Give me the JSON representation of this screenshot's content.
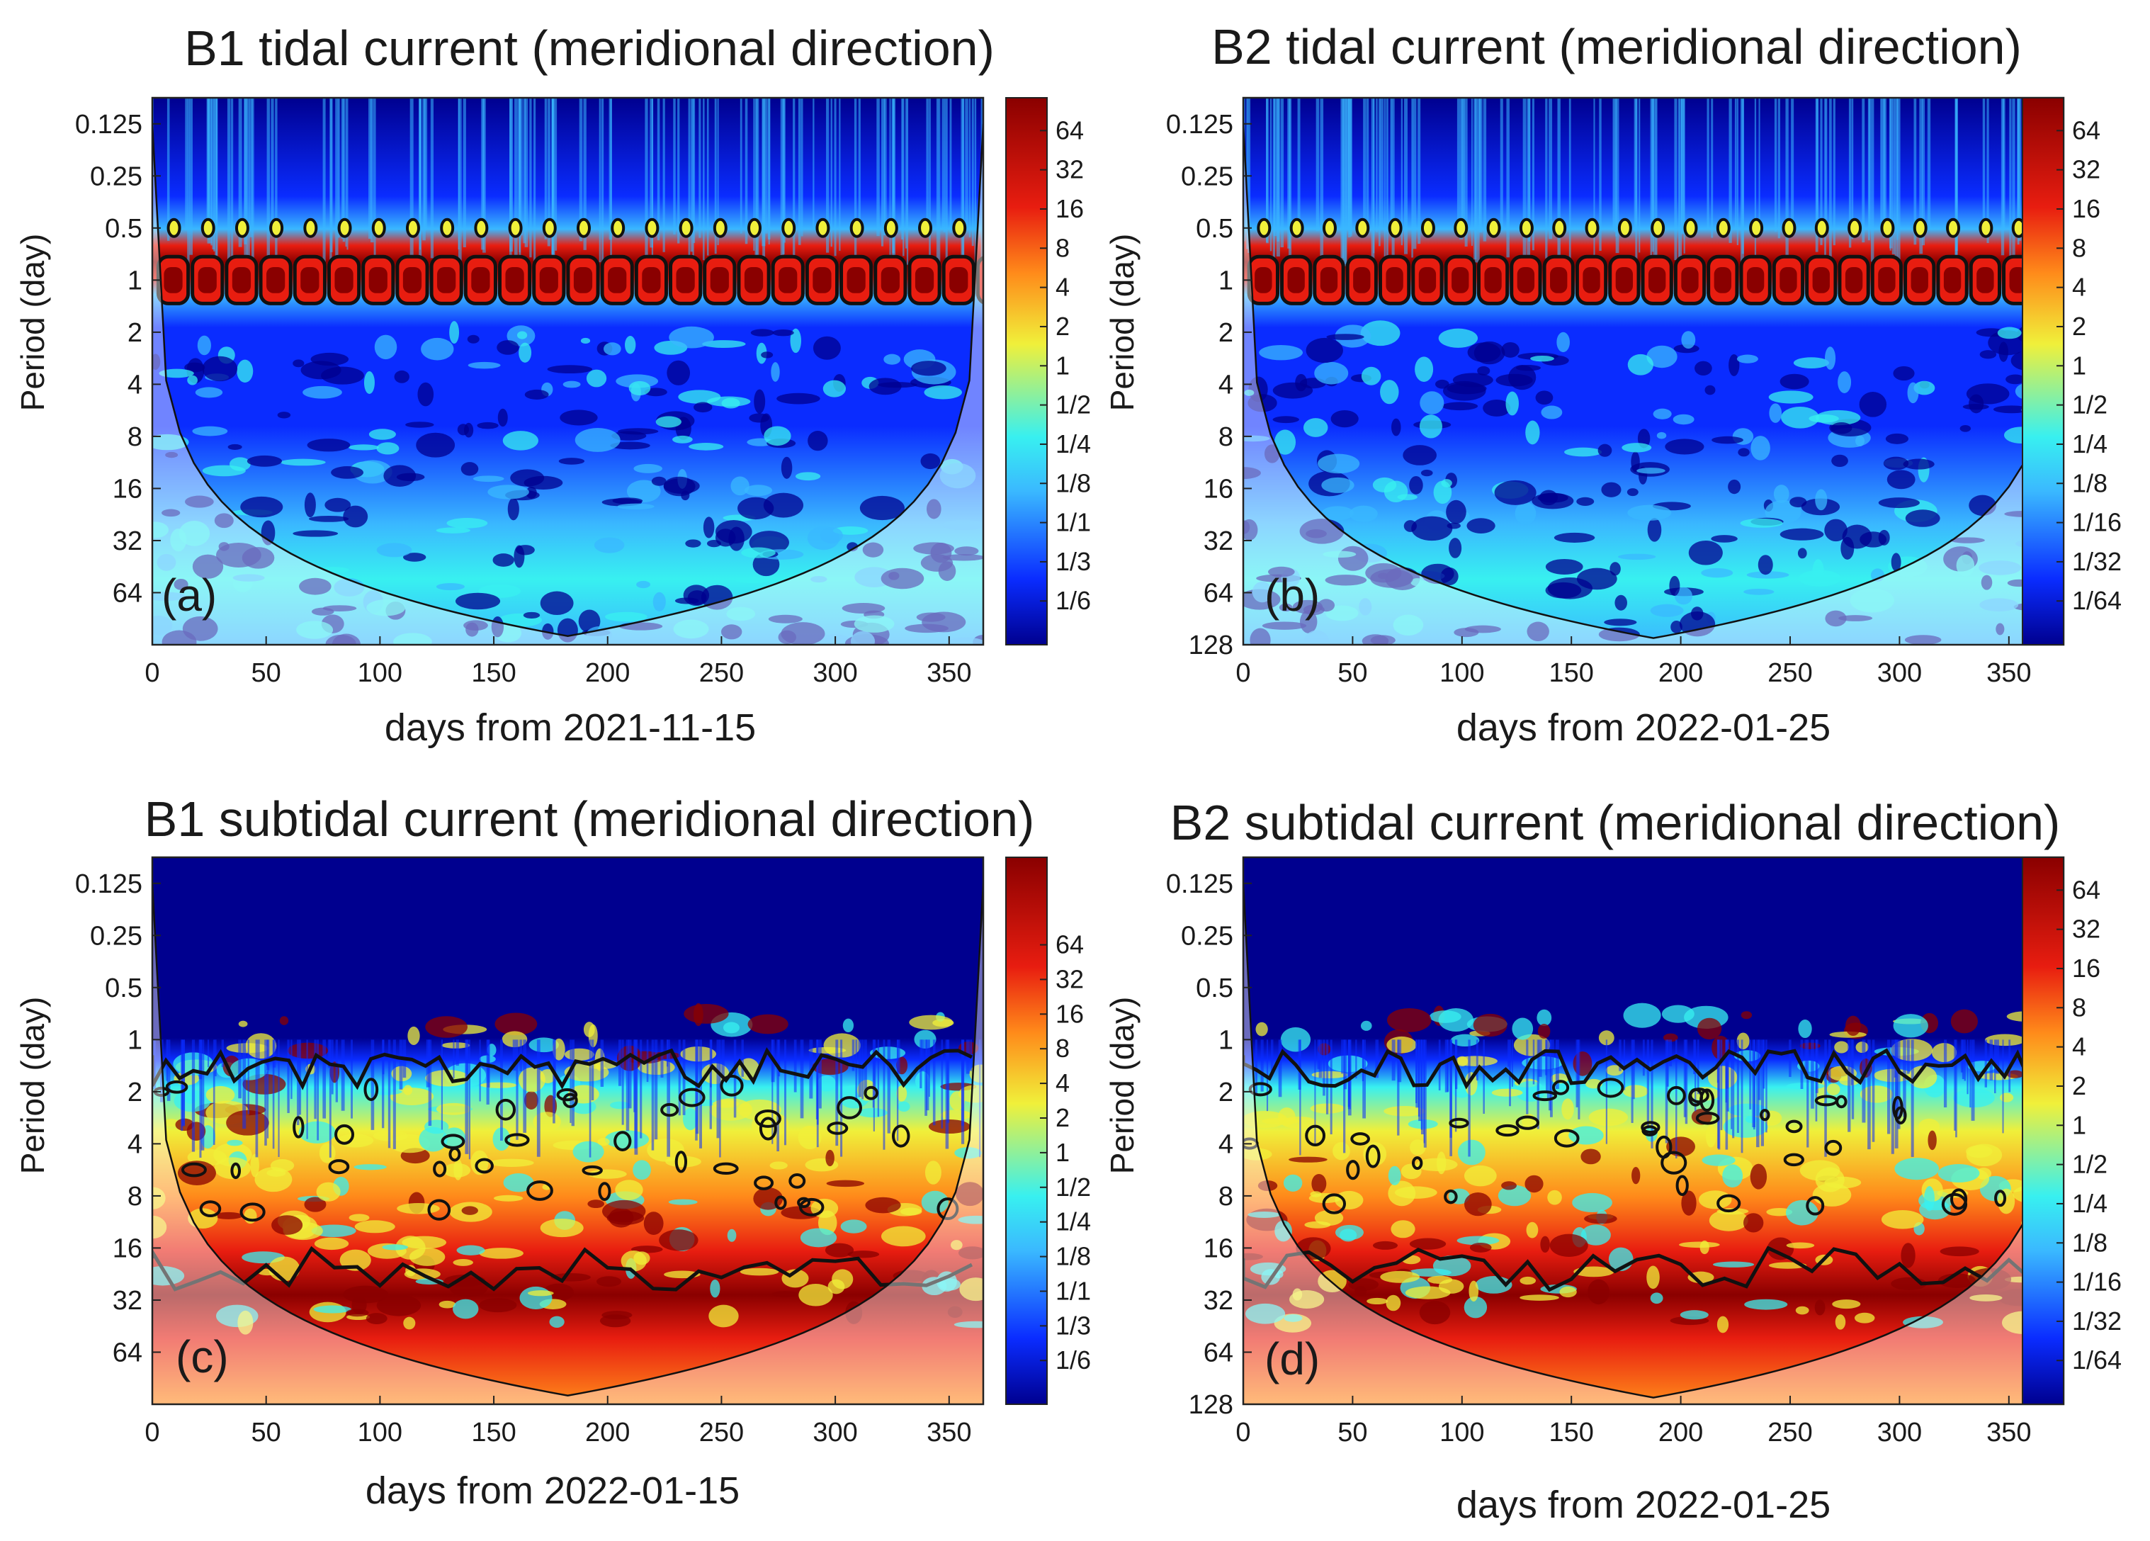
{
  "figure": {
    "ylabel": "Period (day)"
  },
  "colors": {
    "dark_blue": "#00008f",
    "blue": "#0a2cff",
    "light_blue": "#3ab8ff",
    "cyan": "#38f0f0",
    "yellow": "#f0f03a",
    "orange": "#ff8a1a",
    "red": "#e81d10",
    "dark_red": "#8a0000",
    "contour": "#111111"
  },
  "chart_data": [
    {
      "panel_label": "(a)",
      "type": "heatmap",
      "title": "B1 tidal current (meridional direction)",
      "xlabel": "days from 2021-11-15",
      "ylabel": "Period (day)",
      "xlim": [
        0,
        365
      ],
      "xticks": [
        0,
        50,
        100,
        150,
        200,
        250,
        300,
        350
      ],
      "yticks": [
        "0.125",
        "0.25",
        "0.5",
        "1",
        "2",
        "4",
        "8",
        "16",
        "32",
        "64"
      ],
      "ylim_log2": [
        -3.5,
        7
      ],
      "colorbar_ticks": [
        "64",
        "32",
        "16",
        "8",
        "4",
        "2",
        "1",
        "1/2",
        "1/4",
        "1/8",
        "1/1",
        "1/3",
        "1/6"
      ],
      "signal": "tidal",
      "seed": 3
    },
    {
      "panel_label": "(b)",
      "type": "heatmap",
      "title": "B2 tidal current (meridional direction)",
      "xlabel": "days from 2022-01-25",
      "ylabel": "Period (day)",
      "xlim": [
        0,
        375
      ],
      "xticks": [
        0,
        50,
        100,
        150,
        200,
        250,
        300,
        350
      ],
      "yticks": [
        "0.125",
        "0.25",
        "0.5",
        "1",
        "2",
        "4",
        "8",
        "16",
        "32",
        "64",
        "128"
      ],
      "ylim_log2": [
        -3.5,
        7
      ],
      "colorbar_ticks": [
        "64",
        "32",
        "16",
        "8",
        "4",
        "2",
        "1",
        "1/2",
        "1/4",
        "1/8",
        "1/16",
        "1/32",
        "1/64"
      ],
      "signal": "tidal",
      "seed": 7
    },
    {
      "panel_label": "(c)",
      "type": "heatmap",
      "title": "B1 subtidal current (meridional direction)",
      "xlabel": "days from 2022-01-15",
      "ylabel": "Period (day)",
      "xlim": [
        0,
        365
      ],
      "xticks": [
        0,
        50,
        100,
        150,
        200,
        250,
        300,
        350
      ],
      "yticks": [
        "0.125",
        "0.25",
        "0.5",
        "1",
        "2",
        "4",
        "8",
        "16",
        "32",
        "64"
      ],
      "ylim_log2": [
        -3.5,
        7
      ],
      "colorbar_ticks": [
        "64",
        "32",
        "16",
        "8",
        "4",
        "2",
        "1",
        "1/2",
        "1/4",
        "1/8",
        "1/1",
        "1/3",
        "1/6"
      ],
      "signal": "subtidal",
      "seed": 11
    },
    {
      "panel_label": "(d)",
      "type": "heatmap",
      "title": "B2 subtidal current (meridional direction)",
      "xlabel": "days from 2022-01-25",
      "ylabel": "Period (day)",
      "xlim": [
        0,
        375
      ],
      "xticks": [
        0,
        50,
        100,
        150,
        200,
        250,
        300,
        350
      ],
      "yticks": [
        "0.125",
        "0.25",
        "0.5",
        "1",
        "2",
        "4",
        "8",
        "16",
        "32",
        "64",
        "128"
      ],
      "ylim_log2": [
        -3.5,
        7
      ],
      "colorbar_ticks": [
        "64",
        "32",
        "16",
        "8",
        "4",
        "2",
        "1",
        "1/2",
        "1/4",
        "1/8",
        "1/16",
        "1/32",
        "1/64"
      ],
      "signal": "subtidal",
      "seed": 19
    }
  ]
}
